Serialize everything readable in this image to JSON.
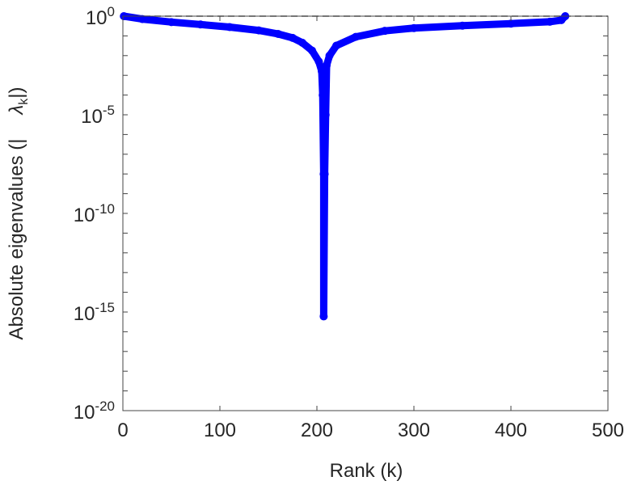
{
  "chart_data": {
    "type": "line",
    "title": "",
    "xlabel": "Rank (k)",
    "ylabel_prefix": "Absolute eigenvalues (|",
    "ylabel_symbol": "λ",
    "ylabel_sub": "k",
    "ylabel_suffix": "|)",
    "xlim": [
      0,
      500
    ],
    "ylim": [
      1e-20,
      1
    ],
    "yscale": "log",
    "x_ticks": [
      "0",
      "100",
      "200",
      "300",
      "400",
      "500"
    ],
    "y_ticks": [
      {
        "base": "10",
        "exp": "0"
      },
      {
        "base": "10",
        "exp": "-5"
      },
      {
        "base": "10",
        "exp": "-10"
      },
      {
        "base": "10",
        "exp": "-15"
      },
      {
        "base": "10",
        "exp": "-20"
      }
    ],
    "reference_line": 1,
    "grid": false,
    "series": [
      {
        "name": "eigenvalues",
        "color": "#0000ff",
        "k": [
          1,
          20,
          50,
          80,
          110,
          140,
          160,
          175,
          185,
          195,
          202,
          205,
          206,
          207,
          207,
          208,
          209,
          210,
          213,
          220,
          240,
          270,
          300,
          350,
          400,
          440,
          452,
          456
        ],
        "value": [
          1.0,
          0.71,
          0.5,
          0.38,
          0.28,
          0.19,
          0.126,
          0.079,
          0.045,
          0.018,
          0.005,
          0.0016,
          0.0001,
          1e-08,
          6e-16,
          1e-08,
          1e-05,
          0.0032,
          0.01,
          0.032,
          0.089,
          0.18,
          0.25,
          0.33,
          0.42,
          0.52,
          0.63,
          1.0
        ]
      }
    ]
  }
}
